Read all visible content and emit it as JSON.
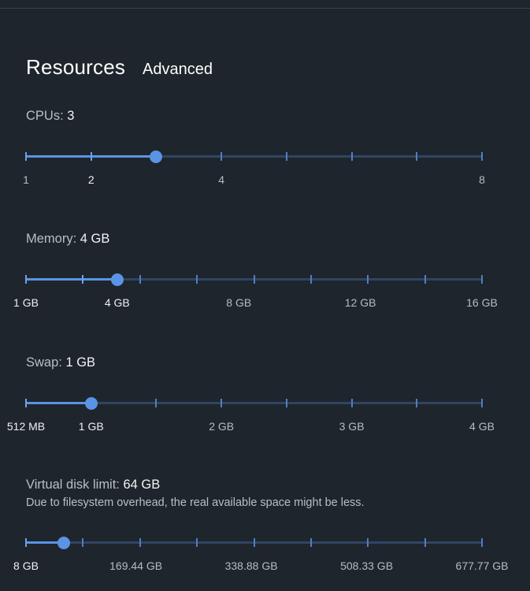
{
  "header": {
    "title": "Resources",
    "tab_advanced": "Advanced"
  },
  "colors": {
    "background": "#1f252c",
    "accent": "#5a94e6",
    "track": "#2f4563"
  },
  "sliders": [
    {
      "id": "cpus",
      "label": "CPUs:",
      "value_text": "3",
      "fraction": 0.2857,
      "ticks": 8,
      "tick_labels": [
        {
          "text": "1",
          "pos": 0
        },
        {
          "text": "2",
          "pos": 0.1429,
          "bright": true
        },
        {
          "text": "4",
          "pos": 0.4286
        },
        {
          "text": "8",
          "pos": 1
        }
      ]
    },
    {
      "id": "memory",
      "label": "Memory:",
      "value_text": "4 GB",
      "fraction": 0.2,
      "ticks": 9,
      "tick_labels": [
        {
          "text": "1 GB",
          "pos": 0,
          "bright": true
        },
        {
          "text": "4 GB",
          "pos": 0.2,
          "bright": true
        },
        {
          "text": "8 GB",
          "pos": 0.4667
        },
        {
          "text": "12 GB",
          "pos": 0.7333
        },
        {
          "text": "16 GB",
          "pos": 1
        }
      ]
    },
    {
      "id": "swap",
      "label": "Swap:",
      "value_text": "1 GB",
      "fraction": 0.1429,
      "ticks": 8,
      "tick_labels": [
        {
          "text": "512 MB",
          "pos": 0,
          "bright": true
        },
        {
          "text": "1 GB",
          "pos": 0.1429,
          "bright": true
        },
        {
          "text": "2 GB",
          "pos": 0.4286
        },
        {
          "text": "3 GB",
          "pos": 0.7143
        },
        {
          "text": "4 GB",
          "pos": 1
        }
      ]
    },
    {
      "id": "disk",
      "label": "Virtual disk limit:",
      "value_text": "64 GB",
      "fraction": 0.0833,
      "ticks": 9,
      "note": "Due to filesystem overhead, the real available space might be less.",
      "tick_labels": [
        {
          "text": "8 GB",
          "pos": 0,
          "bright": true
        },
        {
          "text": "169.44 GB",
          "pos": 0.2411
        },
        {
          "text": "338.88 GB",
          "pos": 0.4941
        },
        {
          "text": "508.33 GB",
          "pos": 0.7471
        },
        {
          "text": "677.77 GB",
          "pos": 1
        }
      ]
    }
  ]
}
